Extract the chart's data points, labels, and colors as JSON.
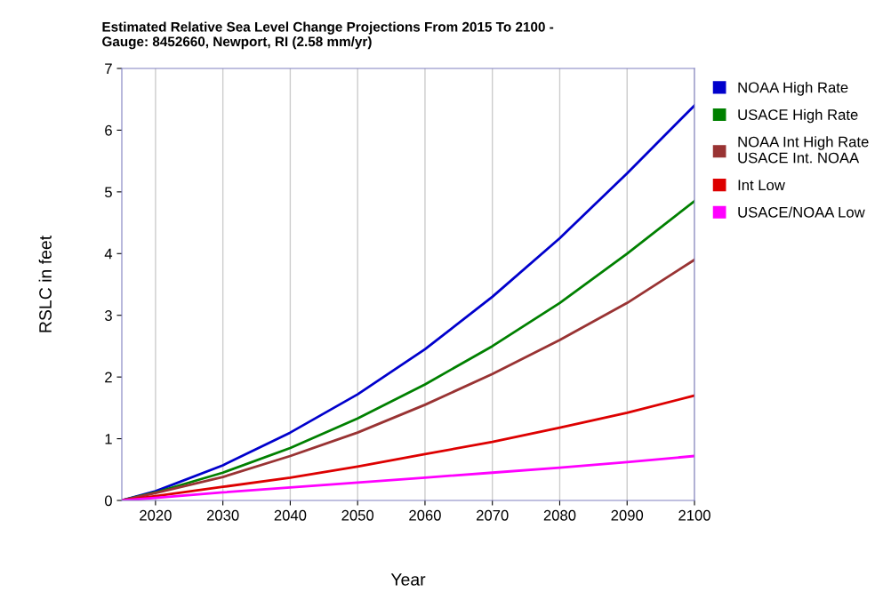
{
  "chart_data": {
    "type": "line",
    "title": "Estimated Relative Sea Level Change Projections From 2015 To 2100 -\nGauge: 8452660, Newport, RI (2.58 mm/yr)",
    "xlabel": "Year",
    "ylabel": "RSLC in feet",
    "x": [
      2015,
      2020,
      2030,
      2040,
      2050,
      2060,
      2070,
      2080,
      2090,
      2100
    ],
    "series": [
      {
        "name": "NOAA High Rate",
        "color": "#0000cc",
        "values": [
          0,
          0.15,
          0.57,
          1.1,
          1.72,
          2.45,
          3.3,
          4.25,
          5.3,
          6.4
        ]
      },
      {
        "name": "USACE High Rate",
        "color": "#008000",
        "values": [
          0,
          0.13,
          0.45,
          0.85,
          1.33,
          1.88,
          2.5,
          3.2,
          4.0,
          4.85
        ]
      },
      {
        "name": "NOAA Int High Rate\nUSACE Int. NOAA",
        "color": "#993333",
        "values": [
          0,
          0.12,
          0.38,
          0.72,
          1.1,
          1.55,
          2.05,
          2.6,
          3.2,
          3.9
        ]
      },
      {
        "name": "Int Low",
        "color": "#dd0000",
        "values": [
          0,
          0.07,
          0.22,
          0.37,
          0.55,
          0.75,
          0.95,
          1.18,
          1.42,
          1.7
        ]
      },
      {
        "name": "USACE/NOAA Low",
        "color": "#ff00ff",
        "values": [
          0,
          0.04,
          0.13,
          0.21,
          0.29,
          0.37,
          0.45,
          0.53,
          0.62,
          0.72
        ]
      }
    ],
    "xlim": [
      2015,
      2100
    ],
    "xticks": [
      2020,
      2030,
      2040,
      2050,
      2060,
      2070,
      2080,
      2090,
      2100
    ],
    "ylim": [
      0,
      7
    ],
    "yticks": [
      0,
      1,
      2,
      3,
      4,
      5,
      6,
      7
    ],
    "grid": "x",
    "legend": "right",
    "marker": "none",
    "line_style": "solid"
  }
}
